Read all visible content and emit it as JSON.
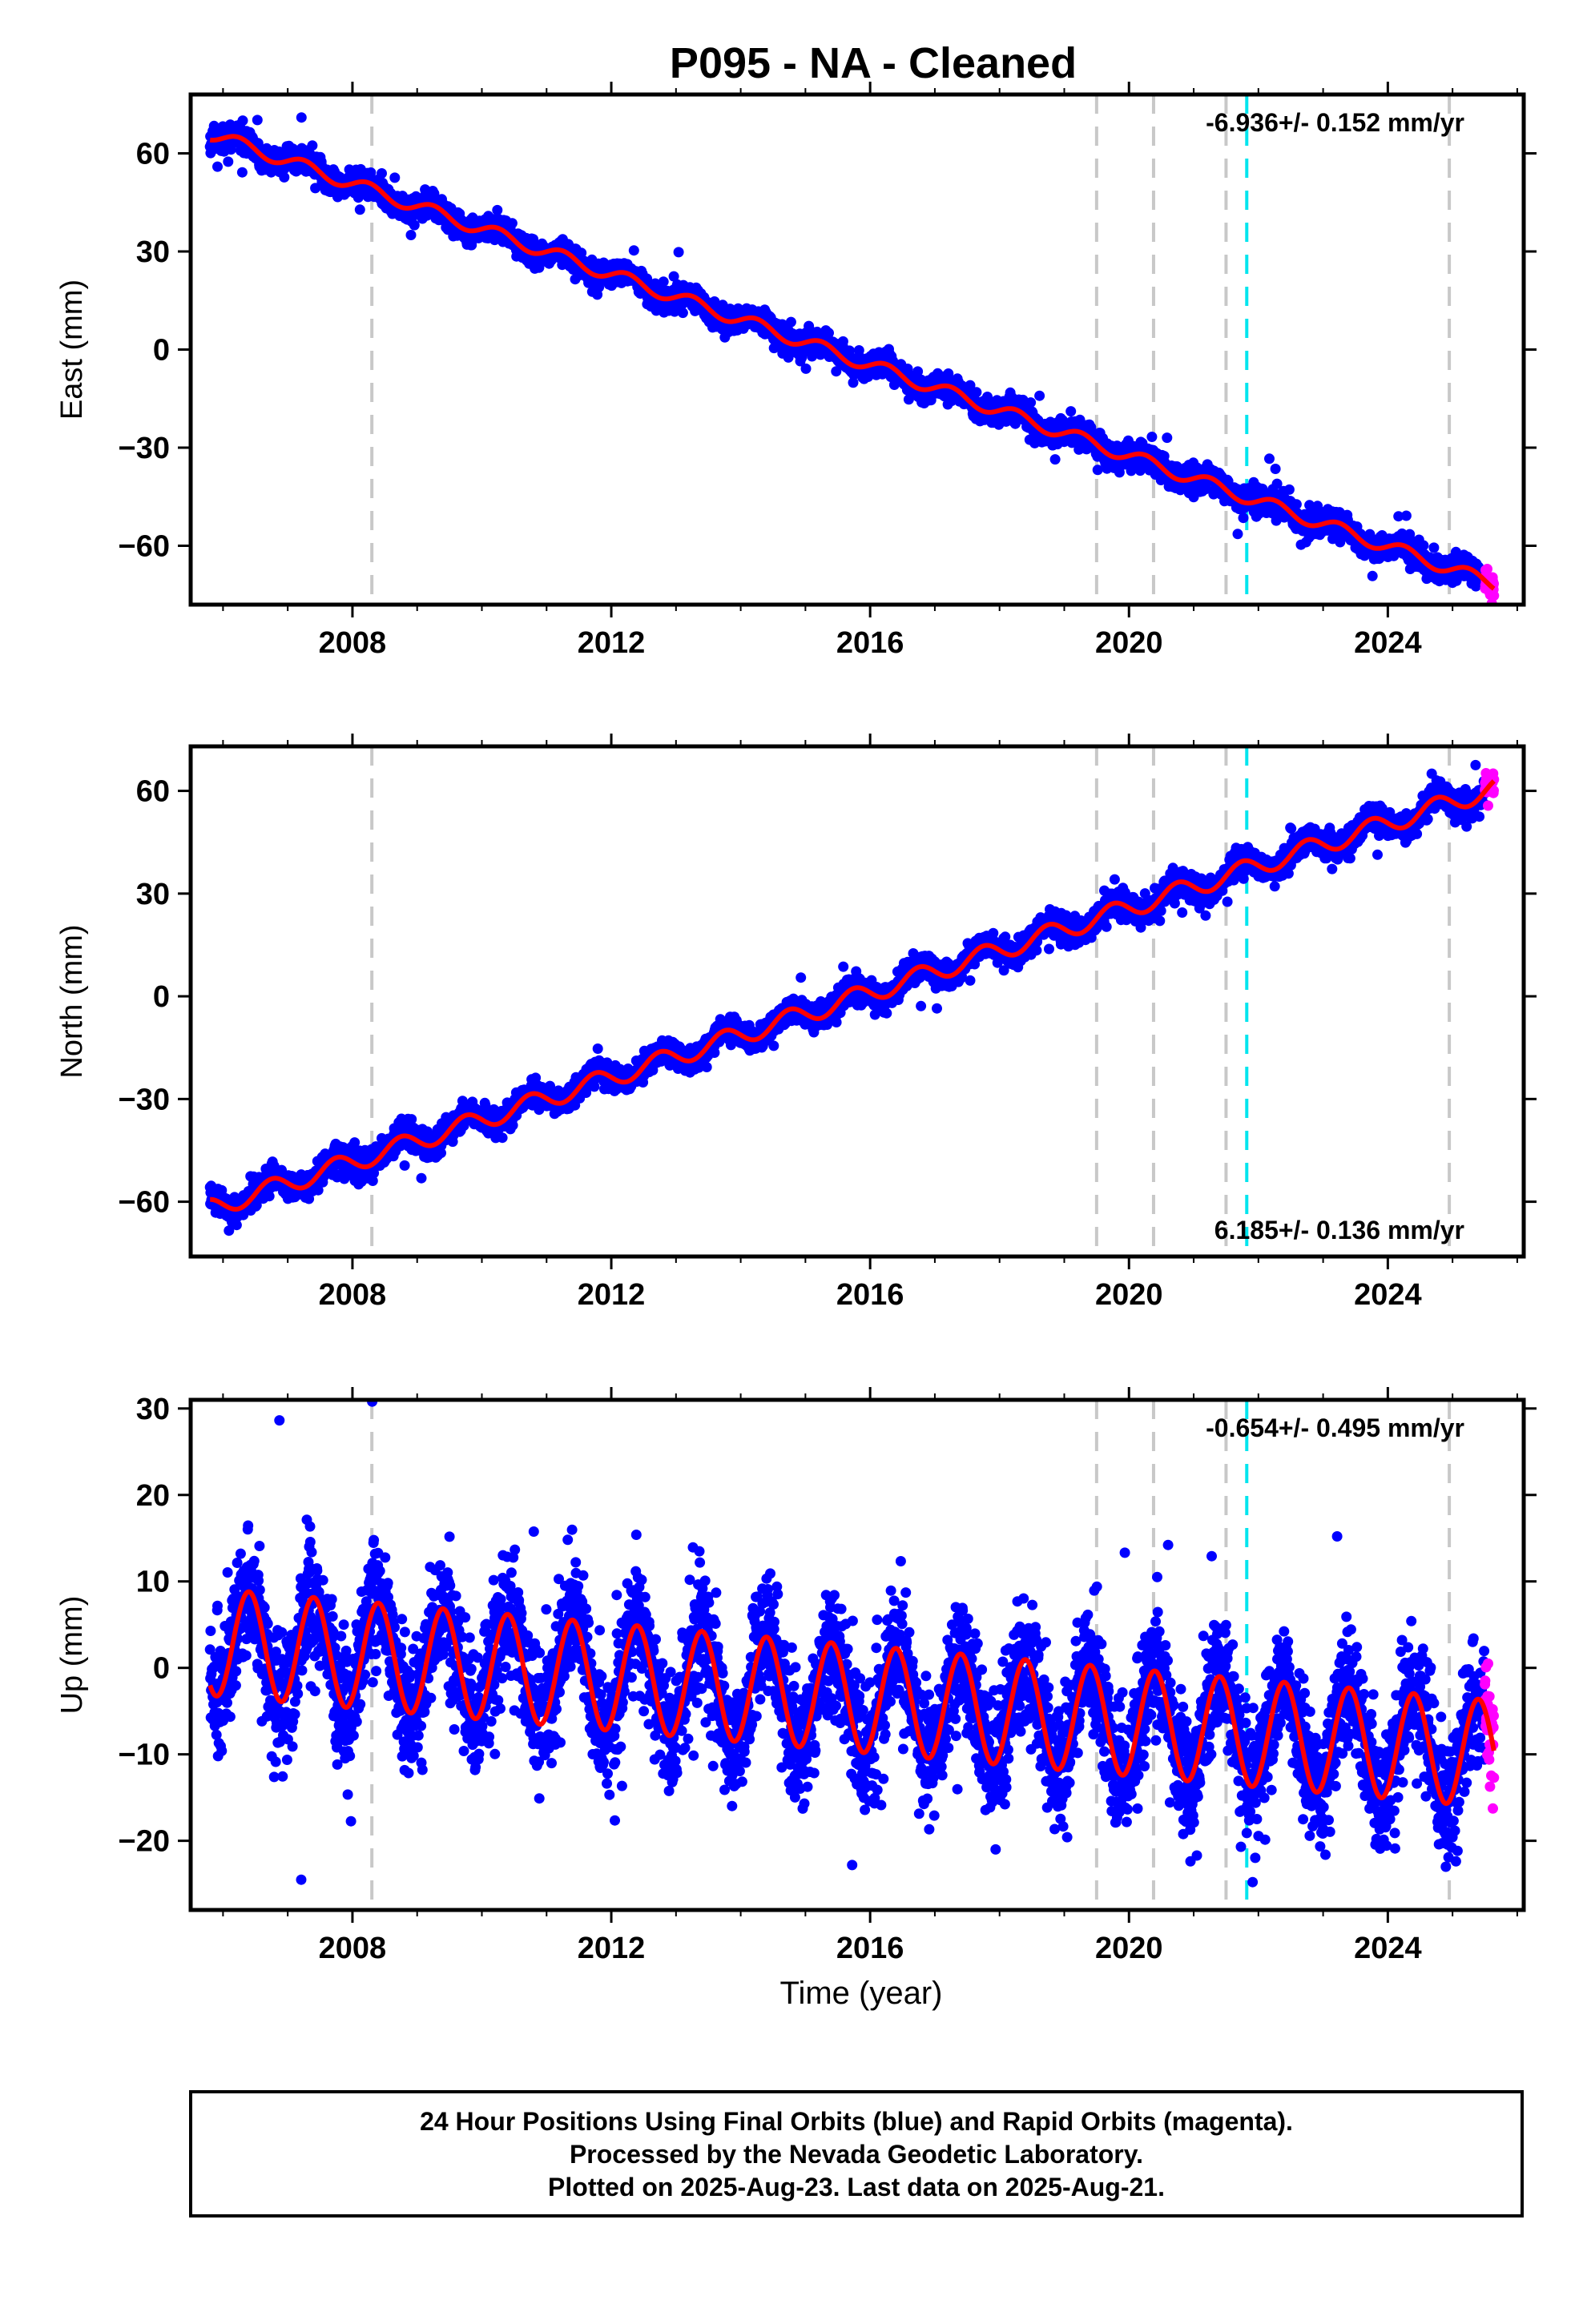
{
  "chart_data": {
    "type": "scatter",
    "title": "P095  - NA - Cleaned",
    "xlabel": "Time (year)",
    "xlim": [
      2005.5,
      2026.1
    ],
    "x_ticks": [
      2008,
      2012,
      2016,
      2020,
      2024
    ],
    "data_start": 2005.8,
    "data_end": 2025.64,
    "rapid_start": 2025.5,
    "vertical_lines": [
      {
        "x": 2008.3,
        "color": "#c8c8c8"
      },
      {
        "x": 2019.5,
        "color": "#c8c8c8"
      },
      {
        "x": 2020.38,
        "color": "#c8c8c8"
      },
      {
        "x": 2021.5,
        "color": "#c8c8c8"
      },
      {
        "x": 2021.82,
        "color": "#00e5ee"
      },
      {
        "x": 2024.95,
        "color": "#c8c8c8"
      }
    ],
    "colors": {
      "final": "#0000ff",
      "rapid": "#ff00ff",
      "model": "#ff0000"
    },
    "panels": [
      {
        "id": "east",
        "ylabel": "East (mm)",
        "ylim": [
          -78,
          78
        ],
        "y_ticks": [
          60,
          30,
          0,
          -30,
          -60
        ],
        "y_tick_labels": [
          "60",
          "30",
          "0",
          "−30",
          "−60"
        ],
        "rate_label": "-6.936+/- 0.152 mm/yr",
        "rate_position": "top-right",
        "model": {
          "start_value": 66,
          "rate": -6.936,
          "seasonal_amplitude": 2.0,
          "seasonal_phase": 0.0
        },
        "scatter": 1.8,
        "seed": 11
      },
      {
        "id": "north",
        "ylabel": "North (mm)",
        "ylim": [
          -76,
          73
        ],
        "y_ticks": [
          60,
          30,
          0,
          -30,
          -60
        ],
        "y_tick_labels": [
          "60",
          "30",
          "0",
          "−30",
          "−60"
        ],
        "rate_label": "6.185+/- 0.136 mm/yr",
        "rate_position": "bottom-right",
        "model": {
          "start_value": -62,
          "rate": 6.185,
          "seasonal_amplitude": 2.8,
          "seasonal_phase": 0.5
        },
        "scatter": 1.8,
        "seed": 23
      },
      {
        "id": "up",
        "ylabel": "Up (mm)",
        "ylim": [
          -28,
          31
        ],
        "y_ticks": [
          30,
          20,
          10,
          0,
          -10,
          -20
        ],
        "y_tick_labels": [
          "30",
          "20",
          "10",
          "0",
          "−10",
          "−20"
        ],
        "rate_label": "-0.654+/- 0.495 mm/yr",
        "rate_position": "top-right",
        "model": {
          "start_value": 3.0,
          "rate": -0.654,
          "seasonal_amplitude": 6.2,
          "seasonal_phase": 0.85
        },
        "scatter": 3.6,
        "seed": 37
      }
    ],
    "footer": [
      "24 Hour Positions Using Final Orbits (blue) and Rapid Orbits (magenta).",
      "Processed by the Nevada Geodetic Laboratory.",
      "Plotted on 2025-Aug-23. Last data on 2025-Aug-21."
    ]
  }
}
